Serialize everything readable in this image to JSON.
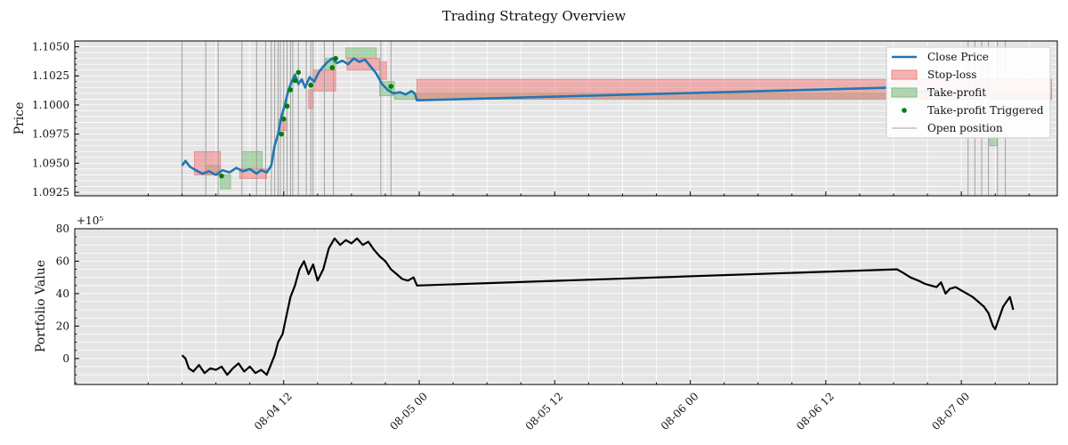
{
  "chart_data": {
    "title": "Trading Strategy Overview",
    "x_tick_labels": [
      "08-04 12",
      "08-05 00",
      "08-05 12",
      "08-06 00",
      "08-06 12",
      "08-07 00"
    ],
    "x_tick_hours": [
      12,
      24,
      36,
      48,
      60,
      72
    ],
    "x_range_hours": [
      -6.5,
      80.5
    ],
    "colors": {
      "close": "#1f77b4",
      "stop_loss": "#f08080",
      "take_profit": "#7fbf7f",
      "tp_marker": "#008000",
      "open_line": "#a0a0a0",
      "portfolio": "#000000",
      "background": "#e5e5e5"
    },
    "price_panel": {
      "type": "line",
      "ylabel": "Price",
      "ylim": [
        1.0922,
        1.1055
      ],
      "y_ticks": [
        1.0925,
        1.095,
        1.0975,
        1.1,
        1.1025,
        1.105
      ],
      "y_tick_labels": [
        "1.0925",
        "1.0950",
        "1.0975",
        "1.1000",
        "1.1025",
        "1.1050"
      ],
      "legend": {
        "position": "top-right",
        "entries": [
          {
            "key": "close",
            "label": "Close Price"
          },
          {
            "key": "stop_loss",
            "label": "Stop-loss"
          },
          {
            "key": "take_profit",
            "label": "Take-profit"
          },
          {
            "key": "tp_triggered",
            "label": "Take-profit Triggered"
          },
          {
            "key": "open",
            "label": "Open position"
          }
        ]
      },
      "close_series": [
        [
          3.0,
          1.0948
        ],
        [
          3.3,
          1.0952
        ],
        [
          3.7,
          1.0947
        ],
        [
          4.2,
          1.0944
        ],
        [
          4.8,
          1.0941
        ],
        [
          5.4,
          1.0943
        ],
        [
          6.0,
          1.094
        ],
        [
          6.6,
          1.0944
        ],
        [
          7.2,
          1.0942
        ],
        [
          7.8,
          1.0946
        ],
        [
          8.4,
          1.0943
        ],
        [
          9.0,
          1.0945
        ],
        [
          9.6,
          1.0941
        ],
        [
          10.0,
          1.0944
        ],
        [
          10.5,
          1.0942
        ],
        [
          10.9,
          1.0948
        ],
        [
          11.2,
          1.0965
        ],
        [
          11.5,
          1.0975
        ],
        [
          11.8,
          1.099
        ],
        [
          12.1,
          1.1
        ],
        [
          12.4,
          1.1012
        ],
        [
          12.7,
          1.102
        ],
        [
          13.0,
          1.1026
        ],
        [
          13.3,
          1.1018
        ],
        [
          13.6,
          1.1022
        ],
        [
          13.9,
          1.1015
        ],
        [
          14.3,
          1.1024
        ],
        [
          14.7,
          1.102
        ],
        [
          15.1,
          1.1028
        ],
        [
          15.5,
          1.1033
        ],
        [
          15.9,
          1.1037
        ],
        [
          16.3,
          1.104
        ],
        [
          16.7,
          1.1036
        ],
        [
          17.2,
          1.1038
        ],
        [
          17.7,
          1.1035
        ],
        [
          18.2,
          1.104
        ],
        [
          18.7,
          1.1037
        ],
        [
          19.2,
          1.1039
        ],
        [
          19.7,
          1.1033
        ],
        [
          20.2,
          1.1027
        ],
        [
          20.7,
          1.1018
        ],
        [
          21.2,
          1.1013
        ],
        [
          21.7,
          1.101
        ],
        [
          22.3,
          1.1011
        ],
        [
          22.8,
          1.1009
        ],
        [
          23.3,
          1.1012
        ],
        [
          23.6,
          1.101
        ],
        [
          23.8,
          1.1004
        ],
        [
          66.3,
          1.1015
        ],
        [
          66.8,
          1.1012
        ],
        [
          67.5,
          1.1013
        ],
        [
          68.3,
          1.1011
        ],
        [
          69.0,
          1.1012
        ],
        [
          70.0,
          1.101
        ]
      ],
      "stop_loss_zones": [
        {
          "x": [
            4.1,
            6.4
          ],
          "y": [
            1.094,
            1.096
          ]
        },
        {
          "x": [
            8.1,
            10.5
          ],
          "y": [
            1.0937,
            1.0945
          ]
        },
        {
          "x": [
            11.6,
            12.3
          ],
          "y": [
            1.0978,
            1.0988
          ]
        },
        {
          "x": [
            14.2,
            14.6
          ],
          "y": [
            1.0997,
            1.1013
          ]
        },
        {
          "x": [
            14.6,
            16.6
          ],
          "y": [
            1.1012,
            1.103
          ]
        },
        {
          "x": [
            17.6,
            20.5
          ],
          "y": [
            1.103,
            1.104
          ]
        },
        {
          "x": [
            20.5,
            21.1
          ],
          "y": [
            1.1022,
            1.1037
          ]
        },
        {
          "x": [
            23.8,
            80.0
          ],
          "y": [
            1.1005,
            1.1022
          ]
        }
      ],
      "take_profit_zones": [
        {
          "x": [
            5.1,
            6.4
          ],
          "y": [
            1.094,
            1.0948
          ]
        },
        {
          "x": [
            6.4,
            7.3
          ],
          "y": [
            1.0928,
            1.094
          ]
        },
        {
          "x": [
            8.3,
            10.1
          ],
          "y": [
            1.0945,
            1.096
          ]
        },
        {
          "x": [
            15.7,
            16.6
          ],
          "y": [
            1.103,
            1.104
          ]
        },
        {
          "x": [
            17.5,
            20.2
          ],
          "y": [
            1.104,
            1.1049
          ]
        },
        {
          "x": [
            20.5,
            21.8
          ],
          "y": [
            1.1008,
            1.102
          ]
        },
        {
          "x": [
            21.8,
            80.0
          ],
          "y": [
            1.1005,
            1.101
          ]
        },
        {
          "x": [
            74.5,
            75.2
          ],
          "y": [
            1.0965,
            1.0975
          ]
        }
      ],
      "tp_triggered_points": [
        [
          6.5,
          1.0939
        ],
        [
          11.8,
          1.0975
        ],
        [
          12.0,
          1.0988
        ],
        [
          12.3,
          1.0999
        ],
        [
          12.6,
          1.1013
        ],
        [
          13.0,
          1.1021
        ],
        [
          13.3,
          1.1028
        ],
        [
          14.4,
          1.1017
        ],
        [
          16.3,
          1.1032
        ],
        [
          16.6,
          1.104
        ],
        [
          21.5,
          1.1016
        ]
      ],
      "open_position_hours": [
        3.0,
        5.1,
        6.2,
        8.3,
        9.6,
        10.4,
        10.9,
        11.2,
        11.5,
        11.7,
        12.0,
        12.3,
        12.6,
        12.8,
        13.3,
        14.0,
        14.4,
        14.6,
        15.6,
        16.4,
        20.6,
        21.5,
        72.6,
        73.2,
        73.8,
        74.4,
        75.2,
        75.9
      ]
    },
    "portfolio_panel": {
      "type": "line",
      "ylabel": "Portfolio Value",
      "offset_label": "+10⁵",
      "ylim": [
        -16,
        80
      ],
      "y_ticks": [
        0,
        20,
        40,
        60,
        80
      ],
      "y_tick_labels": [
        "0",
        "20",
        "40",
        "60",
        "80"
      ],
      "series": [
        [
          3.0,
          2
        ],
        [
          3.3,
          0
        ],
        [
          3.6,
          -6
        ],
        [
          4.0,
          -8
        ],
        [
          4.5,
          -4
        ],
        [
          5.0,
          -9
        ],
        [
          5.5,
          -6
        ],
        [
          6.0,
          -7
        ],
        [
          6.5,
          -5
        ],
        [
          7.0,
          -10
        ],
        [
          7.5,
          -6
        ],
        [
          8.0,
          -3
        ],
        [
          8.5,
          -8
        ],
        [
          9.0,
          -5
        ],
        [
          9.5,
          -9
        ],
        [
          10.0,
          -7
        ],
        [
          10.5,
          -10
        ],
        [
          10.8,
          -5
        ],
        [
          11.2,
          2
        ],
        [
          11.5,
          10
        ],
        [
          11.9,
          15
        ],
        [
          12.2,
          25
        ],
        [
          12.6,
          38
        ],
        [
          13.0,
          45
        ],
        [
          13.4,
          55
        ],
        [
          13.8,
          60
        ],
        [
          14.2,
          52
        ],
        [
          14.6,
          58
        ],
        [
          15.0,
          48
        ],
        [
          15.5,
          55
        ],
        [
          16.0,
          68
        ],
        [
          16.5,
          74
        ],
        [
          17.0,
          70
        ],
        [
          17.5,
          73
        ],
        [
          18.0,
          71
        ],
        [
          18.5,
          74
        ],
        [
          19.0,
          70
        ],
        [
          19.5,
          72
        ],
        [
          20.0,
          67
        ],
        [
          20.5,
          63
        ],
        [
          21.0,
          60
        ],
        [
          21.5,
          55
        ],
        [
          22.0,
          52
        ],
        [
          22.5,
          49
        ],
        [
          23.0,
          48
        ],
        [
          23.5,
          50
        ],
        [
          23.8,
          45
        ],
        [
          66.3,
          55
        ],
        [
          66.8,
          53
        ],
        [
          67.5,
          50
        ],
        [
          68.2,
          48
        ],
        [
          68.8,
          46
        ],
        [
          69.3,
          45
        ],
        [
          69.8,
          44
        ],
        [
          70.2,
          47
        ],
        [
          70.6,
          40
        ],
        [
          71.0,
          43
        ],
        [
          71.5,
          44
        ],
        [
          72.0,
          42
        ],
        [
          72.5,
          40
        ],
        [
          73.0,
          38
        ],
        [
          73.5,
          35
        ],
        [
          74.0,
          32
        ],
        [
          74.4,
          28
        ],
        [
          74.8,
          20
        ],
        [
          75.0,
          18
        ],
        [
          75.3,
          24
        ],
        [
          75.7,
          32
        ],
        [
          76.0,
          35
        ],
        [
          76.3,
          38
        ],
        [
          76.6,
          30
        ]
      ]
    }
  }
}
